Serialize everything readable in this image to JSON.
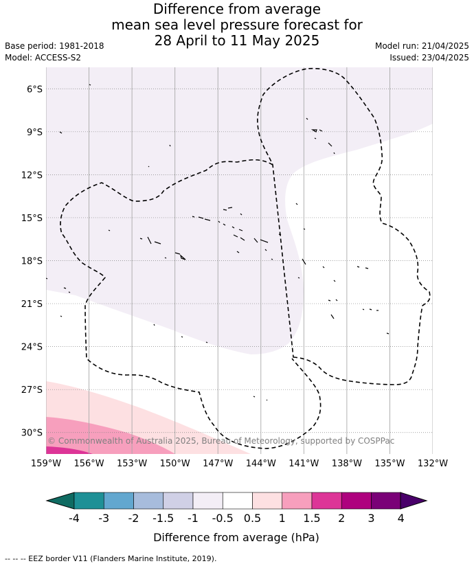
{
  "header": {
    "title_lines": [
      "Difference from average",
      "mean sea level pressure forecast for",
      "28 April to 11 May 2025"
    ],
    "base_period": "Base period: 1981-2018",
    "model": "Model: ACCESS-S2",
    "model_run": "Model run: 21/04/2025",
    "issued": "Issued: 23/04/2025"
  },
  "map": {
    "lat_ticks": [
      "6°S",
      "9°S",
      "12°S",
      "15°S",
      "18°S",
      "21°S",
      "24°S",
      "27°S",
      "30°S"
    ],
    "lon_ticks": [
      "159°W",
      "156°W",
      "153°W",
      "150°W",
      "147°W",
      "144°W",
      "141°W",
      "138°W",
      "135°W",
      "132°W"
    ],
    "lat_range": [
      -31.5,
      -4.5
    ],
    "lon_range": [
      -159,
      -132
    ],
    "copyright": "© Commonwealth of Australia 2025, Bureau of Meteorology, supported by COSPPac"
  },
  "colorbar": {
    "tick_labels": [
      "-4",
      "-3",
      "-2",
      "-1.5",
      "-1",
      "-0.5",
      "0.5",
      "1",
      "1.5",
      "2",
      "3",
      "4"
    ],
    "colors": [
      "#0f6b62",
      "#1e9096",
      "#62a7cf",
      "#a7bcdc",
      "#d0d0e6",
      "#f3eef6",
      "#ffffff",
      "#fde0e2",
      "#f79fbd",
      "#dd3597",
      "#ae017e",
      "#7a0177",
      "#49006a"
    ],
    "label": "Difference from average (hPa)"
  },
  "footnote": "--  --  -- EEZ border V11 (Flanders Marine Institute, 2019)."
}
